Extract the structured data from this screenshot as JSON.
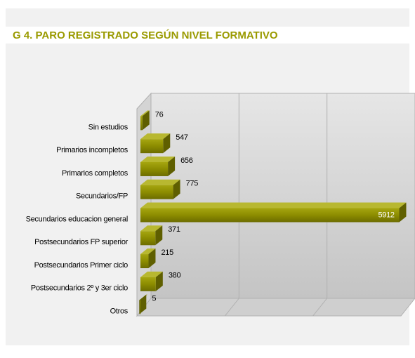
{
  "chart_data": {
    "type": "bar3d_horizontal",
    "title": "G 4. PARO REGISTRADO  SEGÚN NIVEL FORMATIVO",
    "categories": [
      "Sin estudios",
      "Primarios incompletos",
      "Primarios completos",
      "Secundarios/FP",
      "Secundarios educacion general",
      "Postsecundarios FP superior",
      "Postsecundarios  Primer ciclo",
      "Postsecundarios 2º y 3er ciclo",
      "Otros"
    ],
    "values": [
      76,
      547,
      656,
      775,
      5912,
      371,
      215,
      380,
      5
    ],
    "color": "#8c8c00",
    "xlim": [
      0,
      6000
    ],
    "xticks": [
      0,
      2000,
      4000,
      6000
    ],
    "grid": true
  }
}
